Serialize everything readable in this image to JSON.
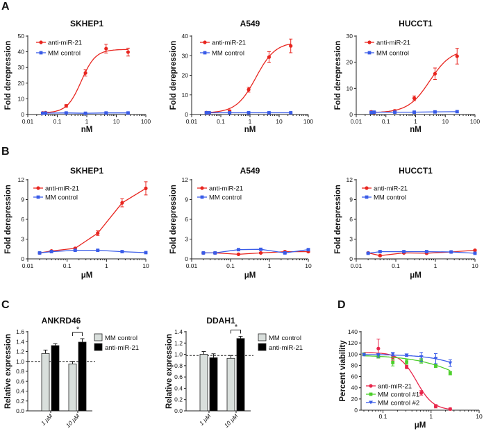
{
  "panel_labels": {
    "A": "A",
    "B": "B",
    "C": "C",
    "D": "D"
  },
  "chart_data": [
    {
      "panel": "A",
      "type": "line",
      "title": "SKHEP1",
      "xlabel": "nM",
      "ylabel": "Fold derepression",
      "xscale": "log",
      "xlim": [
        0.01,
        100
      ],
      "xticks": [
        "0.01",
        "0.1",
        "1",
        "10",
        "100"
      ],
      "ylim": [
        0,
        50
      ],
      "yticks": [
        "0",
        "10",
        "20",
        "30",
        "40",
        "50"
      ],
      "legend": "top-left",
      "series": [
        {
          "name": "anti-miR-21",
          "color": "#e8251f",
          "marker": "circle",
          "x": [
            0.032,
            0.04,
            0.2,
            0.9,
            4.5,
            25
          ],
          "y": [
            1.0,
            1.2,
            5.5,
            26.5,
            42.0,
            39.8
          ],
          "err": [
            0.5,
            0.5,
            0.8,
            2.0,
            2.8,
            2.5
          ],
          "fit": {
            "bottom": 1,
            "top": 41.5,
            "ec50": 0.65,
            "hill": 1.8
          }
        },
        {
          "name": "MM control",
          "color": "#3a5ce8",
          "marker": "square",
          "x": [
            0.032,
            0.04,
            0.2,
            0.9,
            4.5,
            25
          ],
          "y": [
            0.8,
            0.9,
            1.0,
            0.8,
            1.0,
            1.0
          ],
          "err": [
            0.3,
            0.3,
            0.3,
            0.3,
            0.3,
            0.3
          ]
        }
      ]
    },
    {
      "panel": "A",
      "type": "line",
      "title": "A549",
      "xlabel": "nM",
      "ylabel": "Fold derepression",
      "xscale": "log",
      "xlim": [
        0.01,
        100
      ],
      "xticks": [
        "0.01",
        "0.1",
        "1",
        "10",
        "100"
      ],
      "ylim": [
        0,
        40
      ],
      "yticks": [
        "0",
        "10",
        "20",
        "30",
        "40"
      ],
      "legend": "top-left",
      "series": [
        {
          "name": "anti-miR-21",
          "color": "#e8251f",
          "marker": "circle",
          "x": [
            0.032,
            0.04,
            0.2,
            0.9,
            4.5,
            25
          ],
          "y": [
            1.0,
            0.8,
            1.8,
            12.7,
            29.3,
            35.0
          ],
          "err": [
            0.5,
            0.5,
            0.5,
            1.3,
            2.8,
            3.5
          ],
          "fit": {
            "bottom": 0.8,
            "top": 37,
            "ec50": 1.6,
            "hill": 1.3
          }
        },
        {
          "name": "MM control",
          "color": "#3a5ce8",
          "marker": "square",
          "x": [
            0.032,
            0.04,
            0.2,
            0.9,
            4.5,
            25
          ],
          "y": [
            0.9,
            0.9,
            0.9,
            0.9,
            0.9,
            0.9
          ],
          "err": [
            0.3,
            0.3,
            0.3,
            0.3,
            0.3,
            0.3
          ]
        }
      ]
    },
    {
      "panel": "A",
      "type": "line",
      "title": "HUCCT1",
      "xlabel": "nM",
      "ylabel": "Fold derepression",
      "xscale": "log",
      "xlim": [
        0.01,
        100
      ],
      "xticks": [
        "0.01",
        "0.1",
        "1",
        "10",
        "100"
      ],
      "ylim": [
        0,
        30
      ],
      "yticks": [
        "0",
        "10",
        "20",
        "30"
      ],
      "legend": "top-left",
      "series": [
        {
          "name": "anti-miR-21",
          "color": "#e8251f",
          "marker": "circle",
          "x": [
            0.032,
            0.04,
            0.2,
            0.9,
            4.5,
            25
          ],
          "y": [
            1.0,
            0.8,
            1.4,
            6.2,
            15.6,
            22.3
          ],
          "err": [
            0.4,
            0.3,
            0.4,
            0.9,
            2.2,
            3.0
          ],
          "fit": {
            "bottom": 0.7,
            "top": 25,
            "ec50": 3.0,
            "hill": 1.2
          }
        },
        {
          "name": "MM control",
          "color": "#3a5ce8",
          "marker": "square",
          "x": [
            0.032,
            0.04,
            0.2,
            0.9,
            4.5,
            25
          ],
          "y": [
            0.8,
            0.9,
            0.9,
            0.9,
            1.0,
            1.1
          ],
          "err": [
            0.3,
            0.3,
            0.3,
            0.3,
            0.3,
            0.3
          ]
        }
      ]
    },
    {
      "panel": "B",
      "type": "line",
      "title": "SKHEP1",
      "xlabel": "μM",
      "ylabel": "Fold derepression",
      "xscale": "log",
      "xlim": [
        0.01,
        10
      ],
      "xticks": [
        "0.01",
        "0.1",
        "1",
        "10"
      ],
      "ylim": [
        0,
        12
      ],
      "yticks": [
        "0",
        "3",
        "6",
        "9",
        "12"
      ],
      "legend": "top-left",
      "series": [
        {
          "name": "anti-miR-21",
          "color": "#e8251f",
          "marker": "circle",
          "x": [
            0.02,
            0.04,
            0.16,
            0.6,
            2.5,
            10
          ],
          "y": [
            0.9,
            1.2,
            1.6,
            3.9,
            8.5,
            10.7
          ],
          "err": [
            0.1,
            0.1,
            0.1,
            0.35,
            0.6,
            1.0
          ]
        },
        {
          "name": "MM control",
          "color": "#3a5ce8",
          "marker": "square",
          "x": [
            0.02,
            0.04,
            0.16,
            0.6,
            2.5,
            10
          ],
          "y": [
            0.9,
            1.1,
            1.3,
            1.3,
            1.1,
            0.95
          ],
          "err": [
            0.1,
            0.1,
            0.1,
            0.1,
            0.1,
            0.1
          ]
        }
      ]
    },
    {
      "panel": "B",
      "type": "line",
      "title": "A549",
      "xlabel": "μM",
      "ylabel": "Fold derepression",
      "xscale": "log",
      "xlim": [
        0.01,
        10
      ],
      "xticks": [
        "0.01",
        "0.1",
        "1",
        "10"
      ],
      "ylim": [
        0,
        12
      ],
      "yticks": [
        "0",
        "3",
        "6",
        "9",
        "12"
      ],
      "legend": "top-left",
      "series": [
        {
          "name": "anti-miR-21",
          "color": "#e8251f",
          "marker": "circle",
          "x": [
            0.02,
            0.04,
            0.16,
            0.6,
            2.5,
            10
          ],
          "y": [
            0.9,
            0.9,
            0.7,
            0.9,
            1.1,
            1.1
          ],
          "err": [
            0.1,
            0.1,
            0.1,
            0.1,
            0.1,
            0.1
          ]
        },
        {
          "name": "MM control",
          "color": "#3a5ce8",
          "marker": "square",
          "x": [
            0.02,
            0.04,
            0.16,
            0.6,
            2.5,
            10
          ],
          "y": [
            0.9,
            0.9,
            1.4,
            1.45,
            0.9,
            1.4
          ],
          "err": [
            0.1,
            0.1,
            0.1,
            0.1,
            0.1,
            0.1
          ]
        }
      ]
    },
    {
      "panel": "B",
      "type": "line",
      "title": "HUCCT1",
      "xlabel": "μM",
      "ylabel": "Fold derepression",
      "xscale": "log",
      "xlim": [
        0.01,
        10
      ],
      "xticks": [
        "0.01",
        "0.1",
        "1",
        "10"
      ],
      "ylim": [
        0,
        12
      ],
      "yticks": [
        "0",
        "3",
        "6",
        "9",
        "12"
      ],
      "legend": "top-left",
      "series": [
        {
          "name": "anti-miR-21",
          "color": "#e8251f",
          "marker": "circle",
          "x": [
            0.02,
            0.04,
            0.16,
            0.6,
            2.5,
            10
          ],
          "y": [
            0.9,
            0.5,
            0.9,
            0.85,
            1.05,
            1.3
          ],
          "err": [
            0.1,
            0.1,
            0.1,
            0.1,
            0.1,
            0.1
          ]
        },
        {
          "name": "MM control",
          "color": "#3a5ce8",
          "marker": "square",
          "x": [
            0.02,
            0.04,
            0.16,
            0.6,
            2.5,
            10
          ],
          "y": [
            0.85,
            1.1,
            1.1,
            1.1,
            1.05,
            0.85
          ],
          "err": [
            0.1,
            0.1,
            0.1,
            0.1,
            0.1,
            0.1
          ]
        }
      ]
    },
    {
      "panel": "C",
      "type": "bar",
      "title": "ANKRD46",
      "xlabel": "",
      "ylabel": "Relative expression",
      "categories": [
        "1 μM",
        "10 μM"
      ],
      "ylim": [
        0,
        1.6
      ],
      "yticks": [
        "0.0",
        "0.2",
        "0.4",
        "0.6",
        "0.8",
        "1.0",
        "1.2",
        "1.4",
        "1.6"
      ],
      "reference_line": 1.0,
      "legend": "top-right",
      "series": [
        {
          "name": "MM control",
          "color": "#d9dfdc",
          "values": [
            1.16,
            0.95
          ],
          "err": [
            0.07,
            0.05
          ]
        },
        {
          "name": "anti-miR-21",
          "color": "#000000",
          "values": [
            1.32,
            1.39
          ],
          "err": [
            0.04,
            0.07
          ]
        }
      ],
      "annotations": [
        {
          "category": "10 μM",
          "text": "*"
        }
      ]
    },
    {
      "panel": "C",
      "type": "bar",
      "title": "DDAH1",
      "xlabel": "",
      "ylabel": "Relative expression",
      "categories": [
        "1 μM",
        "10 μM"
      ],
      "ylim": [
        0,
        1.4
      ],
      "yticks": [
        "0.0",
        "0.2",
        "0.4",
        "0.6",
        "0.8",
        "1.0",
        "1.2",
        "1.4"
      ],
      "reference_line": 0.98,
      "legend": "top-right",
      "series": [
        {
          "name": "MM control",
          "color": "#d9dfdc",
          "values": [
            1.0,
            0.93
          ],
          "err": [
            0.05,
            0.05
          ]
        },
        {
          "name": "anti-miR-21",
          "color": "#000000",
          "values": [
            0.94,
            1.28
          ],
          "err": [
            0.07,
            0.04
          ]
        }
      ],
      "annotations": [
        {
          "category": "10 μM",
          "text": "*"
        }
      ]
    },
    {
      "panel": "D",
      "type": "line",
      "title": "",
      "xlabel": "μM",
      "ylabel": "Percent viability",
      "xscale": "log",
      "xlim": [
        0.035,
        10
      ],
      "xticks": [
        "0.1",
        "1",
        "10"
      ],
      "ylim": [
        0,
        140
      ],
      "yticks": [
        "0",
        "20",
        "40",
        "60",
        "80",
        "100",
        "120",
        "140"
      ],
      "legend": "bottom-left",
      "series": [
        {
          "name": "anti-miR-21",
          "color": "#e8254a",
          "marker": "circle",
          "x": [
            0.04,
            0.08,
            0.16,
            0.31,
            0.625,
            1.25,
            2.5
          ],
          "y": [
            100,
            110,
            94,
            77,
            31,
            7,
            2
          ],
          "err": [
            2,
            17,
            5,
            3,
            4,
            3,
            2
          ],
          "fit": {
            "bottom": 0,
            "top": 103,
            "ec50": 0.5,
            "hill": -2.5
          }
        },
        {
          "name": "MM control #1",
          "color": "#4ccf2a",
          "marker": "square",
          "x": [
            0.04,
            0.08,
            0.16,
            0.31,
            0.625,
            1.25,
            2.5
          ],
          "y": [
            100,
            96,
            85,
            86,
            88,
            79,
            66
          ],
          "err": [
            2,
            3,
            6,
            4,
            4,
            3,
            3
          ],
          "fit": {
            "bottom": 0,
            "top": 98.5,
            "ec50": 8,
            "hill": -0.8
          }
        },
        {
          "name": "MM control #2",
          "color": "#3a5ce8",
          "marker": "triangle-down",
          "x": [
            0.04,
            0.08,
            0.16,
            0.31,
            0.625,
            1.25,
            2.5
          ],
          "y": [
            99,
            98,
            100,
            98,
            95,
            92,
            84
          ],
          "err": [
            2,
            3,
            3,
            2,
            8,
            9,
            6
          ],
          "fit": {
            "bottom": 0,
            "top": 99.5,
            "ec50": 15,
            "hill": -1
          }
        }
      ]
    }
  ]
}
